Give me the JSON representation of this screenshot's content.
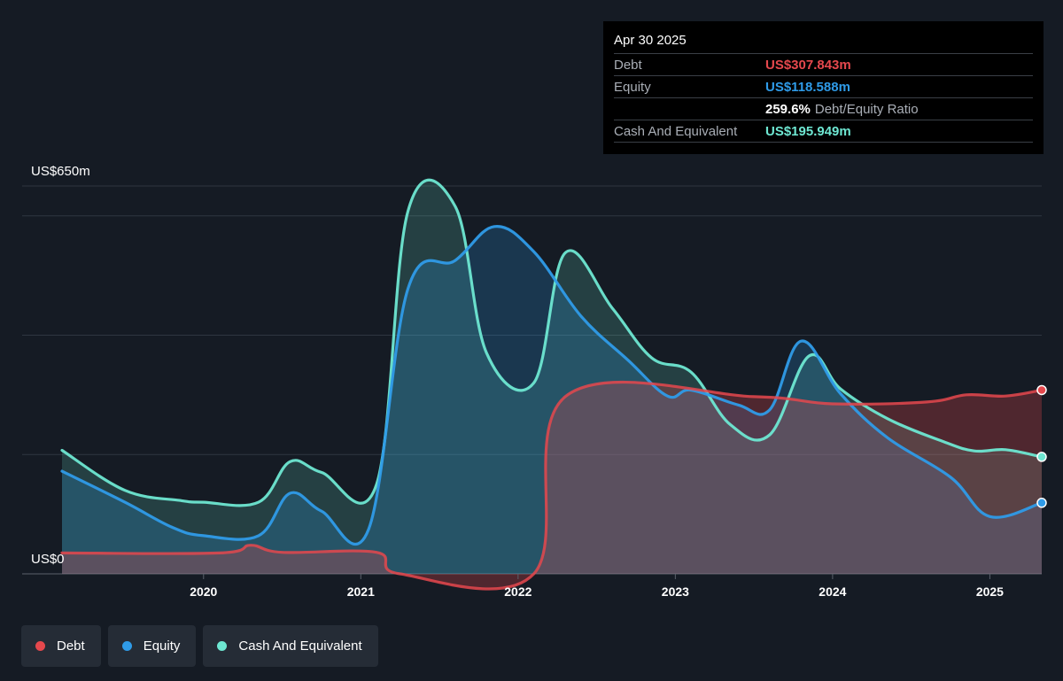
{
  "tooltip": {
    "date": "Apr 30 2025",
    "debt_label": "Debt",
    "debt_value": "US$307.843m",
    "equity_label": "Equity",
    "equity_value": "US$118.588m",
    "ratio_value": "259.6%",
    "ratio_label": "Debt/Equity Ratio",
    "cash_label": "Cash And Equivalent",
    "cash_value": "US$195.949m"
  },
  "legend": [
    {
      "label": "Debt",
      "color": "#e5484d"
    },
    {
      "label": "Equity",
      "color": "#2f9be8"
    },
    {
      "label": "Cash And Equivalent",
      "color": "#6ee7d2"
    }
  ],
  "chart_data": {
    "type": "area",
    "y_top_label": "US$650m",
    "y_bottom_label": "US$0",
    "ylim": [
      0,
      650
    ],
    "xlim": [
      2019.1,
      2025.33
    ],
    "x_ticks": [
      2020,
      2021,
      2022,
      2023,
      2024,
      2025
    ],
    "x_tick_labels": [
      "2020",
      "2021",
      "2022",
      "2023",
      "2024",
      "2025"
    ],
    "gridlines": [
      0,
      200,
      400,
      600,
      650
    ],
    "series": [
      {
        "name": "Debt",
        "color": "#e5484d",
        "x": [
          2019.1,
          2020.1,
          2020.3,
          2020.5,
          2021.1,
          2021.25,
          2022.1,
          2022.3,
          2023.5,
          2024.0,
          2024.6,
          2024.85,
          2025.1,
          2025.33
        ],
        "y": [
          35,
          35,
          48,
          36,
          36,
          0,
          0,
          297,
          297,
          285,
          288,
          300,
          298,
          308
        ]
      },
      {
        "name": "Equity",
        "color": "#2f9be8",
        "x": [
          2019.1,
          2019.5,
          2019.8,
          2020.0,
          2020.35,
          2020.55,
          2020.75,
          2021.05,
          2021.3,
          2021.6,
          2021.85,
          2022.1,
          2022.4,
          2022.7,
          2022.95,
          2023.1,
          2023.4,
          2023.6,
          2023.8,
          2024.05,
          2024.35,
          2024.75,
          2025.0,
          2025.33
        ],
        "y": [
          172,
          120,
          78,
          64,
          64,
          135,
          105,
          75,
          478,
          525,
          582,
          540,
          432,
          358,
          298,
          308,
          283,
          275,
          390,
          302,
          228,
          162,
          96,
          119
        ]
      },
      {
        "name": "Cash And Equivalent",
        "color": "#6ee7d2",
        "x": [
          2019.1,
          2019.5,
          2019.85,
          2020.0,
          2020.35,
          2020.55,
          2020.75,
          2021.1,
          2021.3,
          2021.6,
          2021.8,
          2022.1,
          2022.3,
          2022.6,
          2022.85,
          2023.1,
          2023.35,
          2023.6,
          2023.85,
          2024.05,
          2024.35,
          2024.7,
          2024.9,
          2025.1,
          2025.33
        ],
        "y": [
          207,
          140,
          123,
          120,
          120,
          188,
          170,
          150,
          608,
          616,
          370,
          320,
          538,
          445,
          362,
          338,
          250,
          233,
          365,
          310,
          260,
          222,
          206,
          208,
          196
        ]
      }
    ]
  }
}
